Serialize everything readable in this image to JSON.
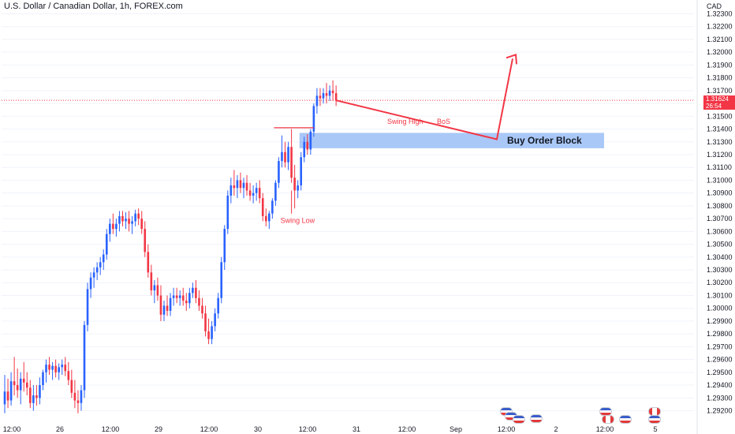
{
  "header": {
    "title": "U.S. Dollar / Canadian Dollar, 1h, FOREX.com"
  },
  "price_scale": {
    "currency": "CAD",
    "ticks": [
      "1.32300",
      "1.32200",
      "1.32100",
      "1.32000",
      "1.31900",
      "1.31800",
      "1.31700",
      "1.31600",
      "1.31500",
      "1.31400",
      "1.31300",
      "1.31200",
      "1.31100",
      "1.31000",
      "1.30900",
      "1.30800",
      "1.30700",
      "1.30600",
      "1.30500",
      "1.30400",
      "1.30300",
      "1.30200",
      "1.30100",
      "1.30000",
      "1.29900",
      "1.29800",
      "1.29700",
      "1.29600",
      "1.29500",
      "1.29400",
      "1.29300",
      "1.29200"
    ],
    "current_price": "1.31624",
    "countdown": "26:54"
  },
  "time_scale": {
    "labels": [
      "12:00",
      "26",
      "12:00",
      "29",
      "12:00",
      "30",
      "12:00",
      "31",
      "12:00",
      "Sep",
      "12:00",
      "2",
      "12:00",
      "5"
    ]
  },
  "annotations": {
    "swing_high": "Swing High",
    "bos": "BoS",
    "swing_low": "Swing Low",
    "order_block": "Buy Order Block"
  },
  "colors": {
    "up": "#2962ff",
    "down": "#f23645",
    "annotation": "#f23645",
    "order_block_fill": "#a9c8f7"
  },
  "chart_data": {
    "type": "candlestick",
    "symbol": "USDCAD",
    "interval": "1h",
    "y_scale_min": 1.2915,
    "y_scale_max": 1.3237,
    "candles": [
      [
        1.2925,
        1.2948,
        1.2918,
        1.2935
      ],
      [
        1.2935,
        1.2945,
        1.2922,
        1.2928
      ],
      [
        1.2928,
        1.295,
        1.2924,
        1.2943
      ],
      [
        1.2943,
        1.2962,
        1.2932,
        1.294
      ],
      [
        1.294,
        1.2953,
        1.293,
        1.2936
      ],
      [
        1.2936,
        1.295,
        1.2925,
        1.2945
      ],
      [
        1.2945,
        1.2958,
        1.2935,
        1.2942
      ],
      [
        1.2942,
        1.295,
        1.2932,
        1.2938
      ],
      [
        1.2938,
        1.2944,
        1.2922,
        1.2926
      ],
      [
        1.2926,
        1.294,
        1.292,
        1.2932
      ],
      [
        1.2932,
        1.294,
        1.2924,
        1.293
      ],
      [
        1.293,
        1.2946,
        1.2925,
        1.294
      ],
      [
        1.294,
        1.2952,
        1.2936,
        1.295
      ],
      [
        1.295,
        1.296,
        1.2942,
        1.2956
      ],
      [
        1.2956,
        1.2962,
        1.2948,
        1.2952
      ],
      [
        1.2952,
        1.2958,
        1.2944,
        1.2955
      ],
      [
        1.2955,
        1.296,
        1.2946,
        1.295
      ],
      [
        1.295,
        1.2957,
        1.2944,
        1.2954
      ],
      [
        1.2954,
        1.296,
        1.2948,
        1.2956
      ],
      [
        1.2956,
        1.2962,
        1.2947,
        1.2951
      ],
      [
        1.2951,
        1.2958,
        1.294,
        1.2944
      ],
      [
        1.2944,
        1.2952,
        1.293,
        1.2934
      ],
      [
        1.2934,
        1.2944,
        1.2922,
        1.2928
      ],
      [
        1.2928,
        1.2936,
        1.2918,
        1.2926
      ],
      [
        1.2926,
        1.294,
        1.292,
        1.2936
      ],
      [
        1.2936,
        1.299,
        1.293,
        1.2987
      ],
      [
        1.2987,
        1.302,
        1.2982,
        1.3015
      ],
      [
        1.3015,
        1.3028,
        1.3008,
        1.3024
      ],
      [
        1.3024,
        1.3032,
        1.3016,
        1.3028
      ],
      [
        1.3028,
        1.3036,
        1.3022,
        1.3032
      ],
      [
        1.3032,
        1.304,
        1.3026,
        1.3036
      ],
      [
        1.3036,
        1.3046,
        1.303,
        1.3042
      ],
      [
        1.3042,
        1.3062,
        1.3038,
        1.3058
      ],
      [
        1.3058,
        1.307,
        1.3052,
        1.3066
      ],
      [
        1.3066,
        1.3074,
        1.3058,
        1.3062
      ],
      [
        1.3062,
        1.307,
        1.3056,
        1.3066
      ],
      [
        1.3066,
        1.3076,
        1.306,
        1.3072
      ],
      [
        1.3072,
        1.3076,
        1.3064,
        1.3068
      ],
      [
        1.3068,
        1.3075,
        1.3062,
        1.307
      ],
      [
        1.307,
        1.3076,
        1.306,
        1.3066
      ],
      [
        1.3066,
        1.3072,
        1.3058,
        1.3068
      ],
      [
        1.3068,
        1.3077,
        1.3064,
        1.3074
      ],
      [
        1.3074,
        1.3078,
        1.3065,
        1.307
      ],
      [
        1.307,
        1.3076,
        1.3058,
        1.3062
      ],
      [
        1.3062,
        1.3068,
        1.304,
        1.3044
      ],
      [
        1.3044,
        1.305,
        1.3024,
        1.3028
      ],
      [
        1.3028,
        1.3034,
        1.301,
        1.3014
      ],
      [
        1.3014,
        1.3022,
        1.3004,
        1.3018
      ],
      [
        1.3018,
        1.3024,
        1.3006,
        1.301
      ],
      [
        1.301,
        1.3018,
        1.299,
        1.2995
      ],
      [
        1.2995,
        1.3006,
        1.299,
        1.3002
      ],
      [
        1.3002,
        1.301,
        1.2994,
        1.2998
      ],
      [
        1.2998,
        1.3012,
        1.2994,
        1.3008
      ],
      [
        1.3008,
        1.3016,
        1.3002,
        1.301
      ],
      [
        1.301,
        1.3016,
        1.3004,
        1.3008
      ],
      [
        1.3008,
        1.3014,
        1.3002,
        1.301
      ],
      [
        1.301,
        1.3016,
        1.3002,
        1.3006
      ],
      [
        1.3006,
        1.3012,
        1.2998,
        1.3004
      ],
      [
        1.3004,
        1.3016,
        1.3,
        1.3012
      ],
      [
        1.3012,
        1.302,
        1.3008,
        1.3016
      ],
      [
        1.3016,
        1.3022,
        1.3004,
        1.3008
      ],
      [
        1.3008,
        1.3014,
        1.2998,
        1.3002
      ],
      [
        1.3002,
        1.3008,
        1.2992,
        1.2996
      ],
      [
        1.2996,
        1.3002,
        1.2978,
        1.2982
      ],
      [
        1.2982,
        1.2992,
        1.2972,
        1.2976
      ],
      [
        1.2976,
        1.299,
        1.2972,
        1.2986
      ],
      [
        1.2986,
        1.3,
        1.2982,
        1.2996
      ],
      [
        1.2996,
        1.3012,
        1.2992,
        1.3008
      ],
      [
        1.3008,
        1.304,
        1.3004,
        1.3036
      ],
      [
        1.3036,
        1.3065,
        1.303,
        1.3062
      ],
      [
        1.3062,
        1.3092,
        1.3058,
        1.3088
      ],
      [
        1.3088,
        1.3102,
        1.3082,
        1.3096
      ],
      [
        1.3096,
        1.3108,
        1.3088,
        1.3094
      ],
      [
        1.3094,
        1.3104,
        1.3086,
        1.31
      ],
      [
        1.31,
        1.3106,
        1.309,
        1.3094
      ],
      [
        1.3094,
        1.3102,
        1.3086,
        1.3098
      ],
      [
        1.3098,
        1.3104,
        1.3088,
        1.3092
      ],
      [
        1.3092,
        1.3098,
        1.3084,
        1.3088
      ],
      [
        1.3088,
        1.3096,
        1.3082,
        1.309
      ],
      [
        1.309,
        1.3098,
        1.3084,
        1.3094
      ],
      [
        1.3094,
        1.31,
        1.3082,
        1.3086
      ],
      [
        1.3086,
        1.309,
        1.3068,
        1.3072
      ],
      [
        1.3072,
        1.3078,
        1.3064,
        1.3068
      ],
      [
        1.3068,
        1.3076,
        1.3062,
        1.3074
      ],
      [
        1.3074,
        1.3086,
        1.307,
        1.3084
      ],
      [
        1.3084,
        1.31,
        1.308,
        1.3098
      ],
      [
        1.3098,
        1.3118,
        1.3094,
        1.3115
      ],
      [
        1.3115,
        1.3135,
        1.311,
        1.3122
      ],
      [
        1.3122,
        1.313,
        1.311,
        1.3114
      ],
      [
        1.3114,
        1.313,
        1.3108,
        1.3126
      ],
      [
        1.3126,
        1.314,
        1.3098,
        1.3102
      ],
      [
        1.3102,
        1.3112,
        1.3078,
        1.3092
      ],
      [
        1.3092,
        1.31,
        1.3086,
        1.3096
      ],
      [
        1.3096,
        1.3122,
        1.3092,
        1.3118
      ],
      [
        1.3118,
        1.3134,
        1.3114,
        1.313
      ],
      [
        1.313,
        1.3136,
        1.312,
        1.3124
      ],
      [
        1.3124,
        1.314,
        1.312,
        1.3138
      ],
      [
        1.3138,
        1.316,
        1.3134,
        1.3158
      ],
      [
        1.3158,
        1.3172,
        1.3152,
        1.3166
      ],
      [
        1.3166,
        1.3172,
        1.3158,
        1.3164
      ],
      [
        1.3164,
        1.3172,
        1.316,
        1.3168
      ],
      [
        1.3168,
        1.3176,
        1.316,
        1.3166
      ],
      [
        1.3166,
        1.3174,
        1.3162,
        1.317
      ],
      [
        1.317,
        1.3178,
        1.3162,
        1.3168
      ],
      [
        1.3168,
        1.3174,
        1.3158,
        1.31624
      ]
    ],
    "projection": [
      1.31624,
      1.3132,
      1.3195
    ]
  }
}
